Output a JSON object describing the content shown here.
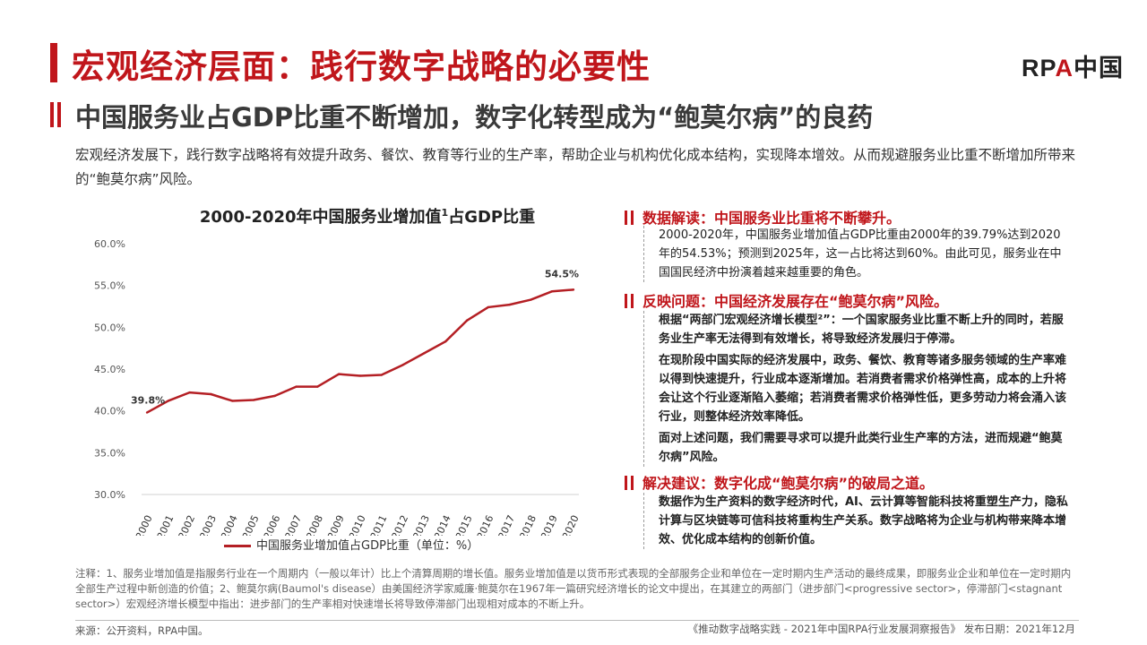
{
  "header": {
    "title": "宏观经济层面：践行数字战略的必要性",
    "logo_r": "RP",
    "logo_a": "A",
    "logo_cn": "中国",
    "subtitle": "中国服务业占GDP比重不断增加，数字化转型成为“鲍莫尔病”的良药",
    "intro": "宏观经济发展下，践行数字战略将有效提升政务、餐饮、教育等行业的生产率，帮助企业与机构优化成本结构，实现降本增效。从而规避服务业比重不断增加所带来的“鲍莫尔病”风险。"
  },
  "chart_title": {
    "before": "2000-2020年中国服务业增加值",
    "sup": "1",
    "after": "占GDP比重"
  },
  "chart_data": {
    "type": "line",
    "title": "2000-2020年中国服务业增加值1占GDP比重",
    "x": [
      "2000",
      "2001",
      "2002",
      "2003",
      "2004",
      "2005",
      "2006",
      "2007",
      "2008",
      "2009",
      "2010",
      "2011",
      "2012",
      "2013",
      "2014",
      "2015",
      "2016",
      "2017",
      "2018",
      "2019",
      "2020"
    ],
    "series": [
      {
        "name": "中国服务业增加值占GDP比重（单位：%）",
        "values": [
          39.8,
          41.2,
          42.2,
          42.0,
          41.2,
          41.3,
          41.8,
          42.9,
          42.9,
          44.4,
          44.2,
          44.3,
          45.5,
          46.9,
          48.3,
          50.8,
          52.4,
          52.7,
          53.3,
          54.3,
          54.5
        ]
      }
    ],
    "ylim": [
      30,
      60
    ],
    "yticks": [
      30,
      35,
      40,
      45,
      50,
      55,
      60
    ],
    "ytick_labels": [
      "30.0%",
      "35.0%",
      "40.0%",
      "45.0%",
      "50.0%",
      "55.0%",
      "60.0%"
    ],
    "annotations": {
      "first": "39.8%",
      "last": "54.5%"
    },
    "legend_label": "中国服务业增加值占GDP比重（单位：%）",
    "color": "#b41f24"
  },
  "sections": [
    {
      "head": "数据解读：中国服务业比重将不断攀升。",
      "paras": [
        "2000-2020年，中国服务业增加值占GDP比重由2000年的39.79%达到2020年的54.53%；预测到2025年，这一占比将达到60%。由此可见，服务业在中国国民经济中扮演着越来越重要的角色。"
      ]
    },
    {
      "head": "反映问题：中国经济发展存在“鲍莫尔病”风险。",
      "paras": [
        "根据“两部门宏观经济增长模型²”：一个国家服务业比重不断上升的同时，若服务业生产率无法得到有效增长，将导致经济发展归于停滞。",
        "在现阶段中国实际的经济发展中，政务、餐饮、教育等诸多服务领域的生产率难以得到快速提升，行业成本逐渐增加。若消费者需求价格弹性高，成本的上升将会让这个行业逐渐陷入萎缩；若消费者需求价格弹性低，更多劳动力将会涌入该行业，则整体经济效率降低。",
        "面对上述问题，我们需要寻求可以提升此类行业生产率的方法，进而规避“鲍莫尔病”风险。"
      ]
    },
    {
      "head": "解决建议：数字化成“鲍莫尔病”的破局之道。",
      "paras": [
        "数据作为生产资料的数字经济时代，AI、云计算等智能科技将重塑生产力，隐私计算与区块链等可信科技将重构生产关系。数字战略将为企业与机构带来降本增效、优化成本结构的创新价值。"
      ]
    }
  ],
  "footer": {
    "notes": "注释：1、服务业增加值是指服务行业在一个周期内（一般以年计）比上个清算周期的增长值。服务业增加值是以货币形式表现的全部服务企业和单位在一定时期内生产活动的最终成果，即服务业企业和单位在一定时期内全部生产过程中新创造的价值；2、鲍莫尔病(Baumol's disease）由美国经济学家威廉·鲍莫尔在1967年一篇研究经济增长的论文中提出，在其建立的两部门（进步部门<progressive sector>，停滞部门<stagnant sector>）宏观经济增长模型中指出：进步部门的生产率相对快速增长将导致停滞部门出现相对成本的不断上升。",
    "source": "来源：公开资料，RPA中国。",
    "publication": "《推动数字战略实践 - 2021年中国RPA行业发展洞察报告》   发布日期：2021年12月"
  }
}
